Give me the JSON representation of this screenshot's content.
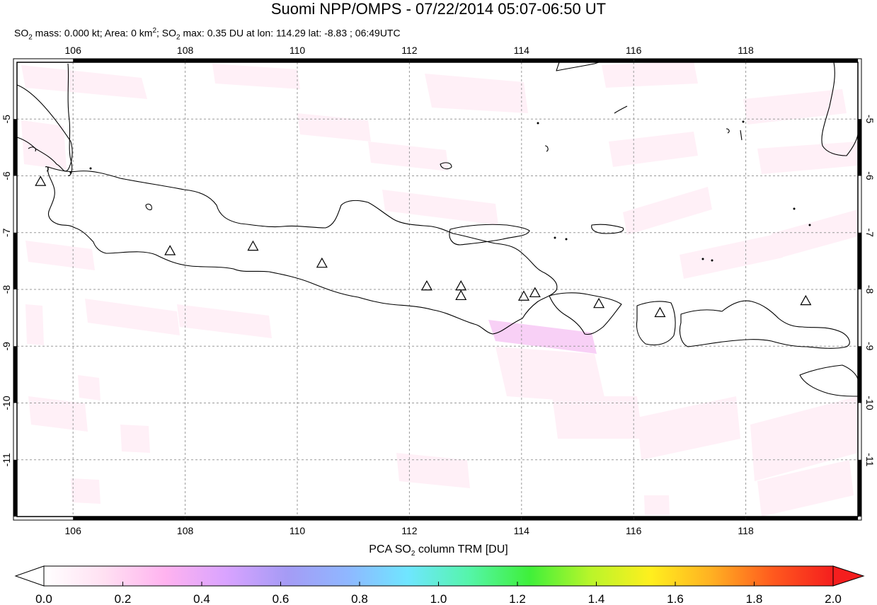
{
  "title": "Suomi NPP/OMPS - 07/22/2014 05:07-06:50 UT",
  "subtitle": {
    "p1": "SO",
    "p1_sub": "2",
    "p2": " mass: 0.000 kt; Area: 0 km",
    "p2_sup": "2",
    "p3": "; SO",
    "p3_sub": "2",
    "p4": " max: 0.35 DU at lon: 114.29 lat: -8.83 ; 06:49UTC"
  },
  "map": {
    "lon_range": [
      105.0,
      120.0
    ],
    "lat_range": [
      -12.0,
      -4.0
    ],
    "lon_ticks": [
      "106",
      "108",
      "110",
      "112",
      "114",
      "116",
      "118"
    ],
    "lat_ticks": [
      "-5",
      "-6",
      "-7",
      "-8",
      "-9",
      "-10",
      "-11"
    ],
    "volcanoes": [
      {
        "lon": 105.42,
        "lat": -6.1
      },
      {
        "lon": 107.73,
        "lat": -7.32
      },
      {
        "lon": 109.21,
        "lat": -7.24
      },
      {
        "lon": 110.44,
        "lat": -7.54
      },
      {
        "lon": 112.31,
        "lat": -7.94
      },
      {
        "lon": 112.92,
        "lat": -7.94
      },
      {
        "lon": 112.92,
        "lat": -8.11
      },
      {
        "lon": 114.04,
        "lat": -8.12
      },
      {
        "lon": 114.24,
        "lat": -8.06
      },
      {
        "lon": 115.38,
        "lat": -8.25
      },
      {
        "lon": 116.47,
        "lat": -8.41
      },
      {
        "lon": 119.07,
        "lat": -8.2
      }
    ]
  },
  "colorbar": {
    "title_p1": "PCA SO",
    "title_sub": "2",
    "title_p2": " column TRM [DU]",
    "ticks": [
      "0.0",
      "0.2",
      "0.4",
      "0.6",
      "0.8",
      "1.0",
      "1.2",
      "1.4",
      "1.6",
      "1.8",
      "2.0"
    ],
    "min": 0.0,
    "max": 2.0,
    "colors": [
      "#ffffff",
      "#ffe0f2",
      "#ffb3ef",
      "#d9a3ff",
      "#a59bf5",
      "#8fb7ff",
      "#6fe6ff",
      "#55f5aa",
      "#3ff03a",
      "#b9f52a",
      "#ffef1e",
      "#ffb022",
      "#ff5a1e",
      "#f51e1e"
    ]
  }
}
